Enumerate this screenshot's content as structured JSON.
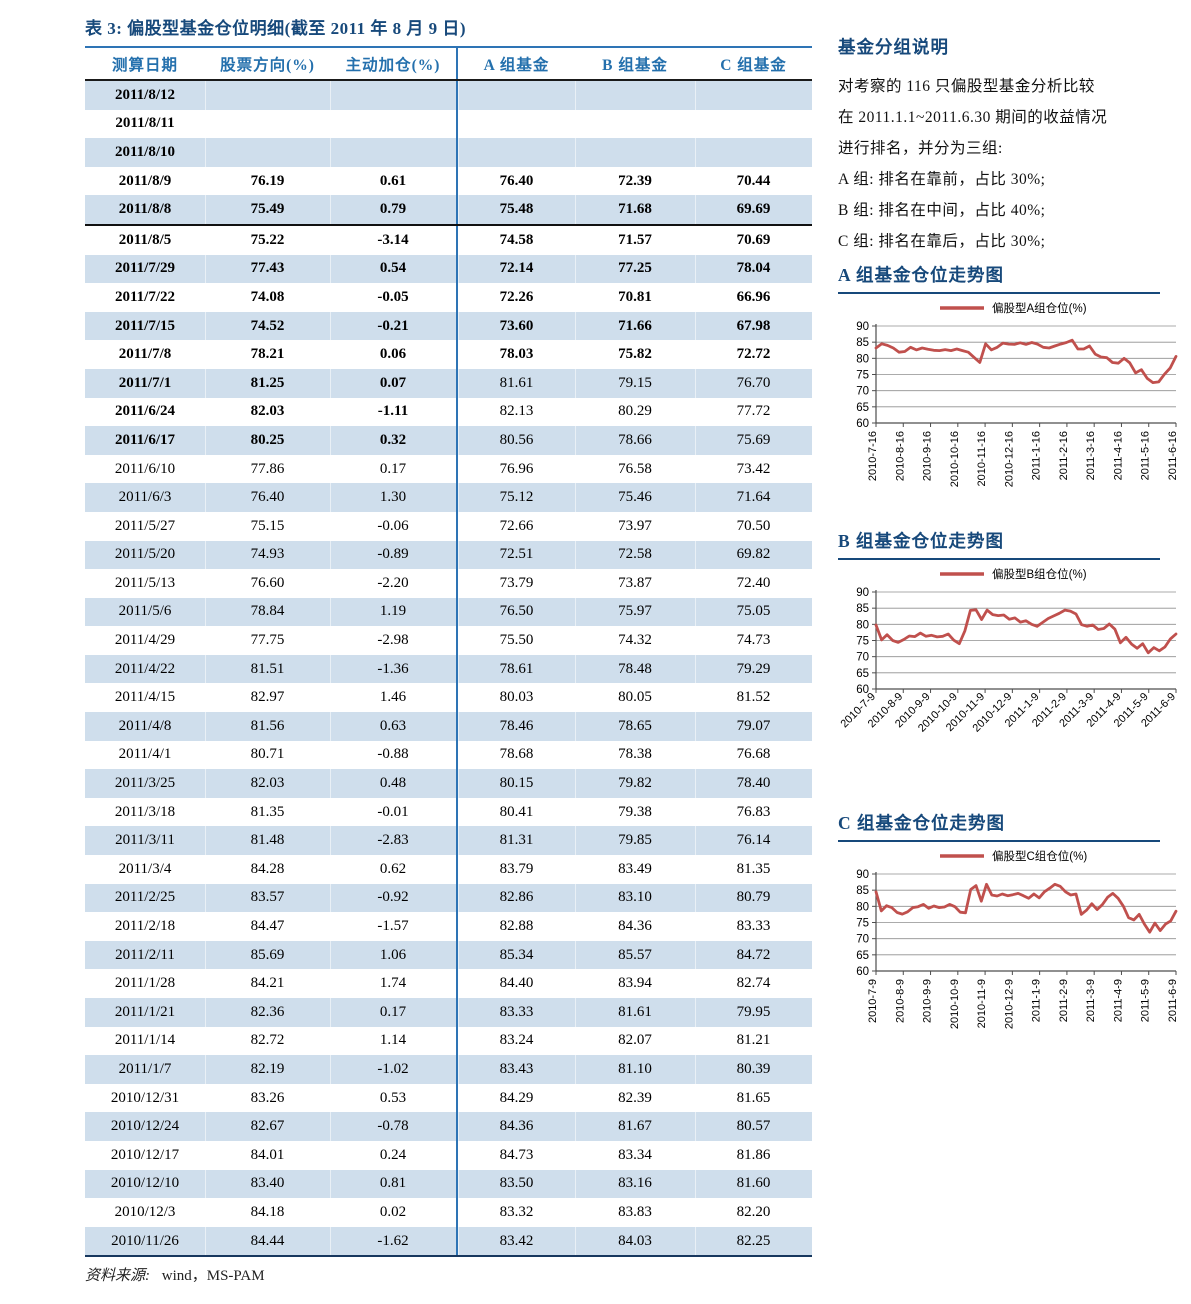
{
  "page": {
    "table": {
      "title": "表 3:  偏股型基金仓位明细(截至 2011 年 8 月 9 日)",
      "columns": [
        "测算日期",
        "股票方向(%)",
        "主动加仓(%)",
        "A 组基金",
        "B 组基金",
        "C 组基金"
      ],
      "rows": [
        {
          "date": "2011/8/12",
          "dir": "",
          "add": "",
          "a": "",
          "b": "",
          "c": "",
          "bold_left": true,
          "bold_right": false,
          "thick": false
        },
        {
          "date": "2011/8/11",
          "dir": "",
          "add": "",
          "a": "",
          "b": "",
          "c": "",
          "bold_left": true,
          "bold_right": false,
          "thick": false
        },
        {
          "date": "2011/8/10",
          "dir": "",
          "add": "",
          "a": "",
          "b": "",
          "c": "",
          "bold_left": true,
          "bold_right": false,
          "thick": false
        },
        {
          "date": "2011/8/9",
          "dir": "76.19",
          "add": "0.61",
          "a": "76.40",
          "b": "72.39",
          "c": "70.44",
          "bold_left": true,
          "bold_right": true,
          "thick": false
        },
        {
          "date": "2011/8/8",
          "dir": "75.49",
          "add": "0.79",
          "a": "75.48",
          "b": "71.68",
          "c": "69.69",
          "bold_left": true,
          "bold_right": true,
          "thick": true
        },
        {
          "date": "2011/8/5",
          "dir": "75.22",
          "add": "-3.14",
          "a": "74.58",
          "b": "71.57",
          "c": "70.69",
          "bold_left": true,
          "bold_right": true,
          "thick": false
        },
        {
          "date": "2011/7/29",
          "dir": "77.43",
          "add": "0.54",
          "a": "72.14",
          "b": "77.25",
          "c": "78.04",
          "bold_left": true,
          "bold_right": true,
          "thick": false
        },
        {
          "date": "2011/7/22",
          "dir": "74.08",
          "add": "-0.05",
          "a": "72.26",
          "b": "70.81",
          "c": "66.96",
          "bold_left": true,
          "bold_right": true,
          "thick": false
        },
        {
          "date": "2011/7/15",
          "dir": "74.52",
          "add": "-0.21",
          "a": "73.60",
          "b": "71.66",
          "c": "67.98",
          "bold_left": true,
          "bold_right": true,
          "thick": false
        },
        {
          "date": "2011/7/8",
          "dir": "78.21",
          "add": "0.06",
          "a": "78.03",
          "b": "75.82",
          "c": "72.72",
          "bold_left": true,
          "bold_right": true,
          "thick": false
        },
        {
          "date": "2011/7/1",
          "dir": "81.25",
          "add": "0.07",
          "a": "81.61",
          "b": "79.15",
          "c": "76.70",
          "bold_left": true,
          "bold_right": false,
          "thick": false
        },
        {
          "date": "2011/6/24",
          "dir": "82.03",
          "add": "-1.11",
          "a": "82.13",
          "b": "80.29",
          "c": "77.72",
          "bold_left": true,
          "bold_right": false,
          "thick": false
        },
        {
          "date": "2011/6/17",
          "dir": "80.25",
          "add": "0.32",
          "a": "80.56",
          "b": "78.66",
          "c": "75.69",
          "bold_left": true,
          "bold_right": false,
          "thick": false
        },
        {
          "date": "2011/6/10",
          "dir": "77.86",
          "add": "0.17",
          "a": "76.96",
          "b": "76.58",
          "c": "73.42",
          "bold_left": false,
          "bold_right": false,
          "thick": false
        },
        {
          "date": "2011/6/3",
          "dir": "76.40",
          "add": "1.30",
          "a": "75.12",
          "b": "75.46",
          "c": "71.64",
          "bold_left": false,
          "bold_right": false,
          "thick": false
        },
        {
          "date": "2011/5/27",
          "dir": "75.15",
          "add": "-0.06",
          "a": "72.66",
          "b": "73.97",
          "c": "70.50",
          "bold_left": false,
          "bold_right": false,
          "thick": false
        },
        {
          "date": "2011/5/20",
          "dir": "74.93",
          "add": "-0.89",
          "a": "72.51",
          "b": "72.58",
          "c": "69.82",
          "bold_left": false,
          "bold_right": false,
          "thick": false
        },
        {
          "date": "2011/5/13",
          "dir": "76.60",
          "add": "-2.20",
          "a": "73.79",
          "b": "73.87",
          "c": "72.40",
          "bold_left": false,
          "bold_right": false,
          "thick": false
        },
        {
          "date": "2011/5/6",
          "dir": "78.84",
          "add": "1.19",
          "a": "76.50",
          "b": "75.97",
          "c": "75.05",
          "bold_left": false,
          "bold_right": false,
          "thick": false
        },
        {
          "date": "2011/4/29",
          "dir": "77.75",
          "add": "-2.98",
          "a": "75.50",
          "b": "74.32",
          "c": "74.73",
          "bold_left": false,
          "bold_right": false,
          "thick": false
        },
        {
          "date": "2011/4/22",
          "dir": "81.51",
          "add": "-1.36",
          "a": "78.61",
          "b": "78.48",
          "c": "79.29",
          "bold_left": false,
          "bold_right": false,
          "thick": false
        },
        {
          "date": "2011/4/15",
          "dir": "82.97",
          "add": "1.46",
          "a": "80.03",
          "b": "80.05",
          "c": "81.52",
          "bold_left": false,
          "bold_right": false,
          "thick": false
        },
        {
          "date": "2011/4/8",
          "dir": "81.56",
          "add": "0.63",
          "a": "78.46",
          "b": "78.65",
          "c": "79.07",
          "bold_left": false,
          "bold_right": false,
          "thick": false
        },
        {
          "date": "2011/4/1",
          "dir": "80.71",
          "add": "-0.88",
          "a": "78.68",
          "b": "78.38",
          "c": "76.68",
          "bold_left": false,
          "bold_right": false,
          "thick": false
        },
        {
          "date": "2011/3/25",
          "dir": "82.03",
          "add": "0.48",
          "a": "80.15",
          "b": "79.82",
          "c": "78.40",
          "bold_left": false,
          "bold_right": false,
          "thick": false
        },
        {
          "date": "2011/3/18",
          "dir": "81.35",
          "add": "-0.01",
          "a": "80.41",
          "b": "79.38",
          "c": "76.83",
          "bold_left": false,
          "bold_right": false,
          "thick": false
        },
        {
          "date": "2011/3/11",
          "dir": "81.48",
          "add": "-2.83",
          "a": "81.31",
          "b": "79.85",
          "c": "76.14",
          "bold_left": false,
          "bold_right": false,
          "thick": false
        },
        {
          "date": "2011/3/4",
          "dir": "84.28",
          "add": "0.62",
          "a": "83.79",
          "b": "83.49",
          "c": "81.35",
          "bold_left": false,
          "bold_right": false,
          "thick": false
        },
        {
          "date": "2011/2/25",
          "dir": "83.57",
          "add": "-0.92",
          "a": "82.86",
          "b": "83.10",
          "c": "80.79",
          "bold_left": false,
          "bold_right": false,
          "thick": false
        },
        {
          "date": "2011/2/18",
          "dir": "84.47",
          "add": "-1.57",
          "a": "82.88",
          "b": "84.36",
          "c": "83.33",
          "bold_left": false,
          "bold_right": false,
          "thick": false
        },
        {
          "date": "2011/2/11",
          "dir": "85.69",
          "add": "1.06",
          "a": "85.34",
          "b": "85.57",
          "c": "84.72",
          "bold_left": false,
          "bold_right": false,
          "thick": false
        },
        {
          "date": "2011/1/28",
          "dir": "84.21",
          "add": "1.74",
          "a": "84.40",
          "b": "83.94",
          "c": "82.74",
          "bold_left": false,
          "bold_right": false,
          "thick": false
        },
        {
          "date": "2011/1/21",
          "dir": "82.36",
          "add": "0.17",
          "a": "83.33",
          "b": "81.61",
          "c": "79.95",
          "bold_left": false,
          "bold_right": false,
          "thick": false
        },
        {
          "date": "2011/1/14",
          "dir": "82.72",
          "add": "1.14",
          "a": "83.24",
          "b": "82.07",
          "c": "81.21",
          "bold_left": false,
          "bold_right": false,
          "thick": false
        },
        {
          "date": "2011/1/7",
          "dir": "82.19",
          "add": "-1.02",
          "a": "83.43",
          "b": "81.10",
          "c": "80.39",
          "bold_left": false,
          "bold_right": false,
          "thick": false
        },
        {
          "date": "2010/12/31",
          "dir": "83.26",
          "add": "0.53",
          "a": "84.29",
          "b": "82.39",
          "c": "81.65",
          "bold_left": false,
          "bold_right": false,
          "thick": false
        },
        {
          "date": "2010/12/24",
          "dir": "82.67",
          "add": "-0.78",
          "a": "84.36",
          "b": "81.67",
          "c": "80.57",
          "bold_left": false,
          "bold_right": false,
          "thick": false
        },
        {
          "date": "2010/12/17",
          "dir": "84.01",
          "add": "0.24",
          "a": "84.73",
          "b": "83.34",
          "c": "81.86",
          "bold_left": false,
          "bold_right": false,
          "thick": false
        },
        {
          "date": "2010/12/10",
          "dir": "83.40",
          "add": "0.81",
          "a": "83.50",
          "b": "83.16",
          "c": "81.60",
          "bold_left": false,
          "bold_right": false,
          "thick": false
        },
        {
          "date": "2010/12/3",
          "dir": "84.18",
          "add": "0.02",
          "a": "83.32",
          "b": "83.83",
          "c": "82.20",
          "bold_left": false,
          "bold_right": false,
          "thick": false
        },
        {
          "date": "2010/11/26",
          "dir": "84.44",
          "add": "-1.62",
          "a": "83.42",
          "b": "84.03",
          "c": "82.25",
          "bold_left": false,
          "bold_right": false,
          "thick": false
        }
      ],
      "source_label": "资料来源:",
      "source_value": "wind，MS-PAM"
    },
    "notes": {
      "title": "基金分组说明",
      "lines": [
        "对考察的 116 只偏股型基金分析比较",
        "在 2011.1.1~2011.6.30 期间的收益情况",
        "进行排名，并分为三组:",
        "A 组: 排名在靠前，占比 30%;",
        "B 组: 排名在中间，占比 40%;",
        "C 组: 排名在靠后，占比 30%;"
      ]
    },
    "colors": {
      "heading_blue": "#17497B",
      "header_text_blue": "#2470AD",
      "rule_blue": "#2E74B5",
      "row_blue": "#cfdeec",
      "line_red": "#C0504D"
    }
  },
  "chart_data": [
    {
      "type": "line",
      "section_title": "A 组基金仓位走势图",
      "legend": "偏股型A组仓位(%)",
      "color": "#C0504D",
      "ylim": [
        60,
        90
      ],
      "yticks": [
        60,
        65,
        70,
        75,
        80,
        85,
        90
      ],
      "x_labels": [
        "2010-7-16",
        "2010-8-16",
        "2010-9-16",
        "2010-10-16",
        "2010-11-16",
        "2010-12-16",
        "2011-1-16",
        "2011-2-16",
        "2011-3-16",
        "2011-4-16",
        "2011-5-16",
        "2011-6-16"
      ],
      "label_rotation": 90,
      "values": [
        83.2,
        84.5,
        84.0,
        83.2,
        81.9,
        82.1,
        83.4,
        82.6,
        83.2,
        82.8,
        82.5,
        82.4,
        82.7,
        82.4,
        82.9,
        82.4,
        81.9,
        80.3,
        78.7,
        84.5,
        82.6,
        83.4,
        84.7,
        84.4,
        84.3,
        84.8,
        84.3,
        84.9,
        84.4,
        83.4,
        83.2,
        83.8,
        84.4,
        84.9,
        85.6,
        82.9,
        82.9,
        83.8,
        81.3,
        80.4,
        80.2,
        78.7,
        78.5,
        80.0,
        78.6,
        75.5,
        76.5,
        73.8,
        72.5,
        72.7,
        75.1,
        77.0,
        80.6
      ]
    },
    {
      "type": "line",
      "section_title": "B 组基金仓位走势图",
      "legend": "偏股型B组仓位(%)",
      "color": "#C0504D",
      "ylim": [
        60,
        90
      ],
      "yticks": [
        60,
        65,
        70,
        75,
        80,
        85,
        90
      ],
      "x_labels": [
        "2010-7-9",
        "2010-8-9",
        "2010-9-9",
        "2010-10-9",
        "2010-11-9",
        "2010-12-9",
        "2011-1-9",
        "2011-2-9",
        "2011-3-9",
        "2011-4-9",
        "2011-5-9",
        "2011-6-9"
      ],
      "label_rotation": 45,
      "values": [
        79.8,
        75.2,
        76.8,
        75.0,
        74.4,
        75.3,
        76.4,
        76.2,
        77.3,
        76.3,
        76.6,
        76.1,
        76.3,
        77.0,
        75.1,
        74.0,
        78.0,
        84.3,
        84.5,
        81.5,
        84.4,
        83.0,
        82.7,
        82.9,
        81.6,
        82.0,
        80.7,
        81.1,
        80.0,
        79.4,
        80.6,
        81.8,
        82.6,
        83.4,
        84.4,
        84.1,
        83.2,
        79.9,
        79.4,
        79.8,
        78.4,
        78.7,
        80.1,
        78.5,
        74.3,
        76.0,
        73.9,
        72.6,
        74.0,
        71.2,
        72.8,
        71.8,
        73.0,
        75.5,
        77.0
      ]
    },
    {
      "type": "line",
      "section_title": "C 组基金仓位走势图",
      "legend": "偏股型C组仓位(%)",
      "color": "#C0504D",
      "ylim": [
        60,
        90
      ],
      "yticks": [
        60,
        65,
        70,
        75,
        80,
        85,
        90
      ],
      "x_labels": [
        "2010-7-9",
        "2010-8-9",
        "2010-9-9",
        "2010-10-9",
        "2010-11-9",
        "2010-12-9",
        "2011-1-9",
        "2011-2-9",
        "2011-3-9",
        "2011-4-9",
        "2011-5-9",
        "2011-6-9"
      ],
      "label_rotation": 90,
      "values": [
        84.5,
        78.6,
        80.2,
        79.6,
        78.1,
        77.6,
        78.3,
        79.6,
        79.9,
        80.6,
        79.4,
        80.1,
        79.6,
        79.8,
        80.6,
        79.9,
        78.2,
        78.0,
        85.2,
        86.4,
        81.6,
        86.8,
        83.5,
        83.2,
        83.8,
        83.3,
        83.6,
        84.0,
        83.3,
        82.5,
        83.8,
        82.6,
        84.5,
        85.6,
        86.8,
        86.2,
        84.5,
        83.5,
        83.8,
        77.5,
        78.8,
        80.8,
        79.0,
        80.5,
        82.8,
        84.0,
        82.5,
        80.0,
        76.5,
        75.8,
        77.5,
        74.5,
        72.0,
        74.8,
        72.5,
        74.5,
        75.5,
        78.5
      ]
    }
  ]
}
